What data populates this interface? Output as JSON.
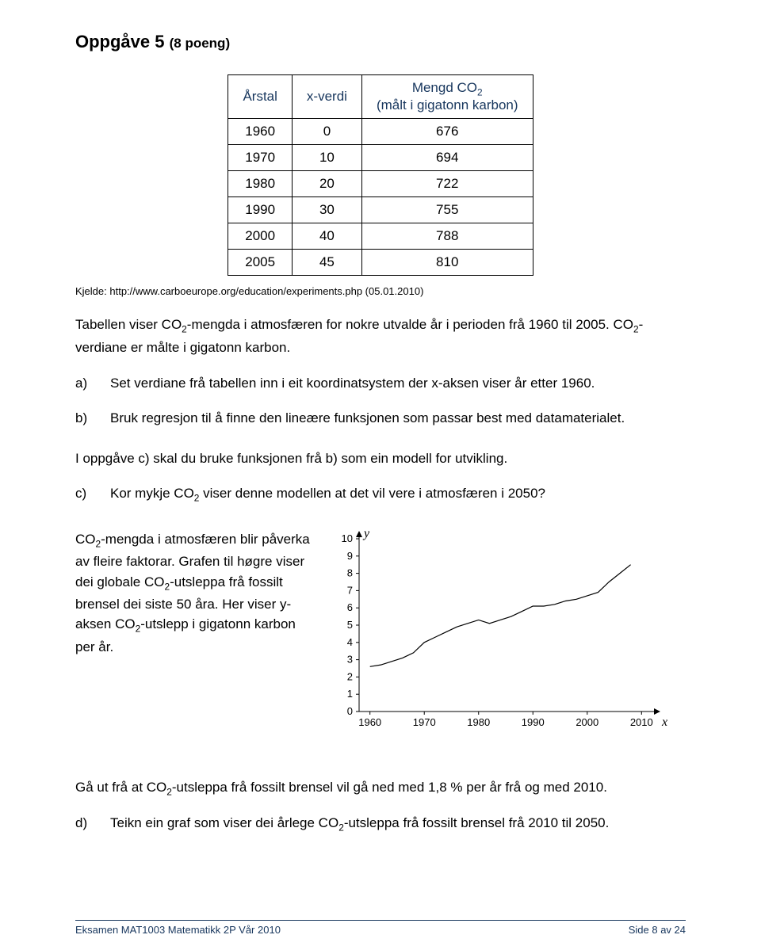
{
  "task": {
    "title_prefix": "Oppgåve 5",
    "points": "(8 poeng)"
  },
  "table": {
    "headers": {
      "col1": "Årstal",
      "col2": "x-verdi",
      "col3_line1": "Mengd CO",
      "col3_sub": "2",
      "col3_line2": "(målt i gigatonn karbon)"
    },
    "header_color": "#17365d",
    "rows": [
      {
        "year": "1960",
        "x": "0",
        "co2": "676"
      },
      {
        "year": "1970",
        "x": "10",
        "co2": "694"
      },
      {
        "year": "1980",
        "x": "20",
        "co2": "722"
      },
      {
        "year": "1990",
        "x": "30",
        "co2": "755"
      },
      {
        "year": "2000",
        "x": "40",
        "co2": "788"
      },
      {
        "year": "2005",
        "x": "45",
        "co2": "810"
      }
    ]
  },
  "source": {
    "label": "Kjelde: ",
    "url": "http://www.carboeurope.org/education/experiments.php (05.01.2010)"
  },
  "intro": {
    "line1_pre": "Tabellen viser CO",
    "line1_post": "-mengda i atmosfæren for nokre utvalde år i perioden frå 1960 til 2005. CO",
    "line1_end": "-verdiane er målte i gigatonn karbon."
  },
  "questions": {
    "a": {
      "letter": "a)",
      "text": "Set verdiane frå tabellen inn i eit koordinatsystem der x-aksen viser år etter 1960."
    },
    "b": {
      "letter": "b)",
      "text": "Bruk regresjon til å finne den lineære funksjonen som passar best med datamaterialet."
    },
    "mid": "I oppgåve c) skal du bruke funksjonen frå b) som ein modell for utvikling.",
    "c": {
      "letter": "c)",
      "pre": "Kor mykje CO",
      "post": " viser denne modellen at det vil vere i atmosfæren i 2050?"
    },
    "desc": {
      "pre": "CO",
      "mid1": "-mengda i atmosfæren blir påverka av fleire faktorar. Grafen til høgre viser dei globale CO",
      "mid2": "-utsleppa frå fossilt brensel dei siste 50 åra. Her viser y-aksen CO",
      "end": "-utslepp i gigatonn karbon per år."
    },
    "closing": {
      "pre": "Gå ut frå at CO",
      "post": "-utsleppa frå fossilt brensel vil gå ned med 1,8 % per år frå og med 2010."
    },
    "d": {
      "letter": "d)",
      "pre": "Teikn ein graf som viser dei årlege CO",
      "post": "-utsleppa frå fossilt brensel frå 2010 til 2050."
    }
  },
  "chart": {
    "type": "line",
    "y_label": "y",
    "x_label": "x",
    "x_ticks": [
      "1960",
      "1970",
      "1980",
      "1990",
      "2000",
      "2010"
    ],
    "y_ticks": [
      "0",
      "1",
      "2",
      "3",
      "4",
      "5",
      "6",
      "7",
      "8",
      "9",
      "10"
    ],
    "xlim": [
      1958,
      2012
    ],
    "ylim": [
      0,
      10
    ],
    "line_color": "#000000",
    "line_width": 1.2,
    "background_color": "#ffffff",
    "axis_color": "#000000",
    "points": [
      {
        "x": 1960,
        "y": 2.6
      },
      {
        "x": 1962,
        "y": 2.7
      },
      {
        "x": 1964,
        "y": 2.9
      },
      {
        "x": 1966,
        "y": 3.1
      },
      {
        "x": 1968,
        "y": 3.4
      },
      {
        "x": 1970,
        "y": 4.0
      },
      {
        "x": 1972,
        "y": 4.3
      },
      {
        "x": 1974,
        "y": 4.6
      },
      {
        "x": 1976,
        "y": 4.9
      },
      {
        "x": 1978,
        "y": 5.1
      },
      {
        "x": 1980,
        "y": 5.3
      },
      {
        "x": 1982,
        "y": 5.1
      },
      {
        "x": 1984,
        "y": 5.3
      },
      {
        "x": 1986,
        "y": 5.5
      },
      {
        "x": 1988,
        "y": 5.8
      },
      {
        "x": 1990,
        "y": 6.1
      },
      {
        "x": 1992,
        "y": 6.1
      },
      {
        "x": 1994,
        "y": 6.2
      },
      {
        "x": 1996,
        "y": 6.4
      },
      {
        "x": 1998,
        "y": 6.5
      },
      {
        "x": 2000,
        "y": 6.7
      },
      {
        "x": 2002,
        "y": 6.9
      },
      {
        "x": 2004,
        "y": 7.5
      },
      {
        "x": 2006,
        "y": 8.0
      },
      {
        "x": 2008,
        "y": 8.5
      }
    ]
  },
  "footer": {
    "left": "Eksamen MAT1003 Matematikk 2P  Vår 2010",
    "right": "Side 8 av 24",
    "color": "#17365d"
  }
}
